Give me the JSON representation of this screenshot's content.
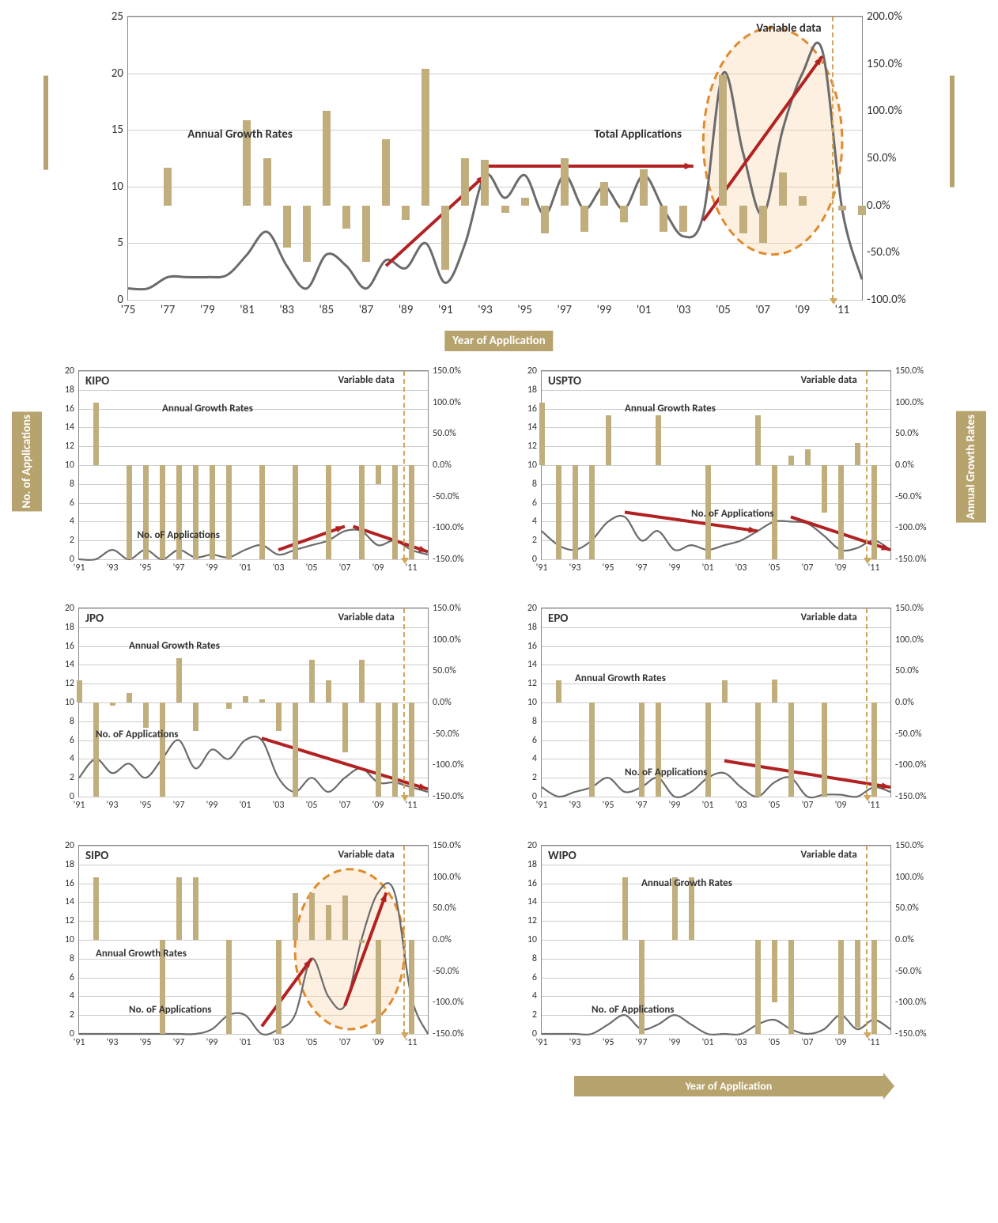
{
  "colors": {
    "bar": "#c0ae7d",
    "line": "#6b6b6b",
    "grid": "#cccccc",
    "axis_box": "#b7a36e",
    "arrow": "#b22222",
    "highlight_stroke": "#e08a2e",
    "highlight_fill": "#f9d9b3",
    "variable_line": "#cfa65e"
  },
  "main_chart": {
    "type": "combo-bar-line",
    "x_label": "Year of Application",
    "left_y_label": "Total Applications",
    "right_y_label": "Annual Growth Rates",
    "variable_data_label": "Variable data",
    "total_apps_label": "Total Applications",
    "growth_label": "Annual Growth Rates",
    "x_ticks": [
      "'75",
      "'77",
      "'79",
      "'81",
      "'83",
      "'85",
      "'87",
      "'89",
      "'91",
      "'93",
      "'95",
      "'97",
      "'99",
      "'01",
      "'03",
      "'05",
      "'07",
      "'09",
      "'11"
    ],
    "x_start": 1975,
    "x_end": 2012,
    "left_ylim": [
      0,
      25
    ],
    "left_ytick_step": 5,
    "right_ylim": [
      -100,
      200
    ],
    "right_ytick_step": 50,
    "line_values": {
      "1975": 1.0,
      "1976": 1.0,
      "1977": 2.0,
      "1978": 2.0,
      "1979": 2.0,
      "1980": 2.2,
      "1981": 4.0,
      "1982": 6.0,
      "1983": 3.0,
      "1984": 1.0,
      "1985": 4.0,
      "1986": 3.0,
      "1987": 1.0,
      "1988": 3.5,
      "1989": 2.8,
      "1990": 5.0,
      "1991": 1.5,
      "1992": 5.0,
      "1993": 11.0,
      "1994": 9.0,
      "1995": 11.0,
      "1996": 7.5,
      "1997": 11.0,
      "1998": 8.0,
      "1999": 10.0,
      "2000": 8.0,
      "2001": 11.0,
      "2002": 8.0,
      "2003": 5.6,
      "2004": 7.5,
      "2005": 20.0,
      "2006": 13.0,
      "2007": 7.5,
      "2008": 15.0,
      "2009": 20.0,
      "2010": 22.0,
      "2011": 8.0,
      "2012": 1.8
    },
    "bar_values": {
      "1976": 0,
      "1977": 40,
      "1978": 0,
      "1979": 0,
      "1980": 0,
      "1981": 90,
      "1982": 50,
      "1983": -45,
      "1984": -60,
      "1985": 100,
      "1986": -25,
      "1987": -60,
      "1988": 70,
      "1989": -15,
      "1990": 145,
      "1991": -68,
      "1992": 50,
      "1993": 48,
      "1994": -8,
      "1995": 8,
      "1996": -30,
      "1997": 50,
      "1998": -28,
      "1999": 25,
      "2000": -18,
      "2001": 38,
      "2002": -28,
      "2003": -28,
      "2004": 0,
      "2005": 138,
      "2006": -30,
      "2007": -40,
      "2008": 35,
      "2009": 10,
      "2010": 0,
      "2011": -5,
      "2012": -10
    },
    "variable_data_x": 2010.5,
    "highlight": {
      "cx_year": 2007.5,
      "cy_val": 14,
      "rx_years": 3.5,
      "ry_val": 10
    },
    "arrows": [
      {
        "x1_year": 1988,
        "y1_val": 3,
        "x2_year": 1993,
        "y2_val": 11
      },
      {
        "x1_year": 1993,
        "y1_val": 11.8,
        "x2_year": 2003.5,
        "y2_val": 11.8
      },
      {
        "x1_year": 2004,
        "y1_val": 7,
        "x2_year": 2010,
        "y2_val": 21.5
      }
    ]
  },
  "small_charts_common": {
    "left_y_label": "No. of Applications",
    "right_y_label": "Annual Growth Rates",
    "x_label": "Year of Application",
    "x_ticks": [
      "'91",
      "'93",
      "'95",
      "'97",
      "'99",
      "'01",
      "'03",
      "'05",
      "'07",
      "'09",
      "'11"
    ],
    "x_start": 1991,
    "x_end": 2012,
    "left_ylim": [
      0,
      20
    ],
    "left_ytick_step": 2,
    "right_ylim": [
      -150,
      150
    ],
    "right_ytick_step": 50,
    "variable_data_label": "Variable data",
    "apps_label": "No. oF Applications",
    "growth_label": "Annual Growth Rates",
    "variable_data_x": 2010.5
  },
  "small_charts": [
    {
      "id": "kipo",
      "title": "KIPO",
      "line_values": {
        "1991": 0,
        "1992": 0,
        "1993": 1,
        "1994": 0,
        "1995": 1,
        "1996": 0,
        "1997": 1,
        "1998": 0.2,
        "1999": 0.5,
        "2000": 0.2,
        "2001": 1,
        "2002": 1.5,
        "2003": 0.5,
        "2004": 1,
        "2005": 1.5,
        "2006": 2,
        "2007": 3,
        "2008": 3,
        "2009": 1.5,
        "2010": 2,
        "2011": 1,
        "2012": 0.5
      },
      "bar_values": {
        "1992": 100,
        "1994": -150,
        "1995": -150,
        "1996": -150,
        "1997": -150,
        "1998": -150,
        "1999": -150,
        "2000": -150,
        "2001": 0,
        "2002": -150,
        "2003": 0,
        "2004": -150,
        "2005": 0,
        "2006": -150,
        "2007": 0,
        "2008": -150,
        "2009": -30,
        "2010": -150,
        "2011": -150
      },
      "arrows": [
        {
          "x1_year": 2003,
          "y1_val": 1,
          "x2_year": 2007,
          "y2_val": 3.5
        },
        {
          "x1_year": 2007.5,
          "y1_val": 3.5,
          "x2_year": 2012,
          "y2_val": 0.8
        }
      ]
    },
    {
      "id": "uspto",
      "title": "USPTO",
      "line_values": {
        "1991": 3,
        "1992": 1.5,
        "1993": 1,
        "1994": 2,
        "1995": 4,
        "1996": 4.5,
        "1997": 2,
        "1998": 3,
        "1999": 1,
        "2000": 1.5,
        "2001": 1,
        "2002": 1.5,
        "2003": 2,
        "2004": 3,
        "2005": 4,
        "2006": 4,
        "2007": 3.8,
        "2008": 2.5,
        "2009": 1,
        "2010": 1.2,
        "2011": 2,
        "2012": 1
      },
      "bar_values": {
        "1991": 100,
        "1992": -150,
        "1993": -150,
        "1994": -150,
        "1995": 80,
        "1998": 80,
        "2001": -150,
        "2004": 80,
        "2005": -150,
        "2006": 15,
        "2007": 25,
        "2008": -75,
        "2009": -150,
        "2010": 35,
        "2011": -150
      },
      "arrows": [
        {
          "x1_year": 1996,
          "y1_val": 5,
          "x2_year": 2004,
          "y2_val": 3
        },
        {
          "x1_year": 2006,
          "y1_val": 4.5,
          "x2_year": 2012,
          "y2_val": 1
        }
      ]
    },
    {
      "id": "jpo",
      "title": "JPO",
      "line_values": {
        "1991": 2,
        "1992": 4,
        "1993": 2.5,
        "1994": 3.5,
        "1995": 2,
        "1996": 4,
        "1997": 6,
        "1998": 3,
        "1999": 5,
        "2000": 4,
        "2001": 6,
        "2002": 6,
        "2003": 2,
        "2004": 0.5,
        "2005": 2,
        "2006": 0.5,
        "2007": 2,
        "2008": 3,
        "2009": 1.5,
        "2010": 1.5,
        "2011": 1,
        "2012": 0.5
      },
      "bar_values": {
        "1991": 35,
        "1992": -150,
        "1993": -5,
        "1994": 15,
        "1995": -40,
        "1996": -150,
        "1997": 70,
        "1998": -45,
        "1999": 0,
        "2000": -10,
        "2001": 10,
        "2002": 5,
        "2003": -45,
        "2004": -150,
        "2005": 68,
        "2006": 35,
        "2007": -80,
        "2008": 68,
        "2009": -150,
        "2010": -150,
        "2011": -150
      },
      "arrows": [
        {
          "x1_year": 2002,
          "y1_val": 6.2,
          "x2_year": 2012,
          "y2_val": 0.8
        }
      ]
    },
    {
      "id": "epo",
      "title": "EPO",
      "line_values": {
        "1991": 1,
        "1992": 0,
        "1993": 0.5,
        "1994": 1,
        "1995": 2,
        "1996": 0.5,
        "1997": 1,
        "1998": 2,
        "1999": 0,
        "2000": 0.5,
        "2001": 2,
        "2002": 2.5,
        "2003": 1,
        "2004": 0,
        "2005": 1.5,
        "2006": 2,
        "2007": 0,
        "2008": 0.2,
        "2009": 0.2,
        "2010": 0,
        "2011": 1,
        "2012": 0.5
      },
      "bar_values": {
        "1992": 35,
        "1994": -150,
        "1997": -150,
        "1998": -150,
        "2001": -150,
        "2002": 35,
        "2004": -150,
        "2005": 36,
        "2006": -150,
        "2008": -150,
        "2011": -150
      },
      "arrows": [
        {
          "x1_year": 2002,
          "y1_val": 3.8,
          "x2_year": 2012,
          "y2_val": 1
        }
      ]
    },
    {
      "id": "sipo",
      "title": "SIPO",
      "line_values": {
        "1991": 0,
        "1992": 0,
        "1993": 0,
        "1994": 0,
        "1995": 0,
        "1996": 0,
        "1997": 0,
        "1998": 0,
        "1999": 0.5,
        "2000": 2,
        "2001": 2,
        "2002": 0,
        "2003": 0.5,
        "2004": 2,
        "2005": 8,
        "2006": 4,
        "2007": 3,
        "2008": 10,
        "2009": 15,
        "2010": 15,
        "2011": 4,
        "2012": 0
      },
      "bar_values": {
        "1992": 100,
        "1996": -150,
        "1997": 100,
        "1998": 100,
        "2000": -150,
        "2003": -150,
        "2004": 75,
        "2005": 75,
        "2006": 55,
        "2007": 70,
        "2008": -5,
        "2009": -150,
        "2011": -150
      },
      "highlight": {
        "cx_year": 2007.3,
        "cy_val": 9,
        "rx_years": 3.3,
        "ry_val": 8.5
      },
      "arrows": [
        {
          "x1_year": 2002,
          "y1_val": 0.8,
          "x2_year": 2005,
          "y2_val": 8
        },
        {
          "x1_year": 2007,
          "y1_val": 3,
          "x2_year": 2009.5,
          "y2_val": 15
        }
      ]
    },
    {
      "id": "wipo",
      "title": "WIPO",
      "line_values": {
        "1991": 0,
        "1992": 0,
        "1993": 0,
        "1994": 0,
        "1995": 1,
        "1996": 2,
        "1997": 0.5,
        "1998": 1,
        "1999": 2,
        "2000": 1,
        "2001": 0,
        "2002": 0,
        "2003": 0,
        "2004": 1,
        "2005": 1.5,
        "2006": 0.5,
        "2007": 0,
        "2008": 0.5,
        "2009": 2,
        "2010": 0.5,
        "2011": 1.5,
        "2012": 0.5
      },
      "bar_values": {
        "1996": 100,
        "1997": -150,
        "1999": 100,
        "2000": 100,
        "2004": -150,
        "2005": -100,
        "2006": -150,
        "2009": -150,
        "2010": -140,
        "2011": -150
      },
      "arrows": []
    }
  ]
}
